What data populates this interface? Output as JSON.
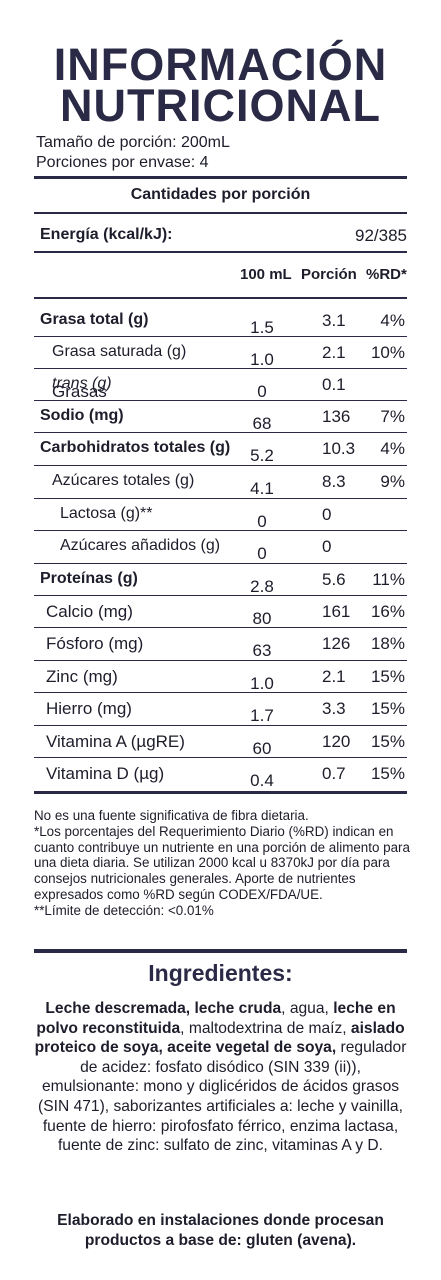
{
  "title": {
    "line1": "INFORMACIÓN",
    "line2": "NUTRICIONAL"
  },
  "serving": {
    "size": "Tamaño de porción: 200mL",
    "per_package": "Porciones por envase: 4"
  },
  "section_header": "Cantidades por porción",
  "energy": {
    "label": "Energía (kcal/kJ):",
    "value": "92/385"
  },
  "columns": {
    "per100": "100 mL",
    "portion": "Porción",
    "rd": "%RD*"
  },
  "rows": [
    {
      "label": "Grasa total (g)",
      "v100": "1.5",
      "portion": "3.1",
      "rd": "4%"
    },
    {
      "label": "Grasa saturada (g)",
      "v100": "1.0",
      "portion": "2.1",
      "rd": "10%"
    },
    {
      "label_pre": "Grasas ",
      "label_italic": "trans (g)",
      "v100": "0",
      "portion": "0.1",
      "rd": ""
    },
    {
      "label": "Sodio (mg)",
      "v100": "68",
      "portion": "136",
      "rd": "7%"
    },
    {
      "label": "Carbohidratos totales (g)",
      "v100": "5.2",
      "portion": "10.3",
      "rd": "4%"
    },
    {
      "label": "Azúcares totales (g)",
      "v100": "4.1",
      "portion": "8.3",
      "rd": "9%"
    },
    {
      "label": "Lactosa (g)**",
      "v100": "0",
      "portion": "0",
      "rd": ""
    },
    {
      "label": "Azúcares añadidos (g)",
      "v100": "0",
      "portion": "0",
      "rd": ""
    },
    {
      "label": "Proteínas (g)",
      "v100": "2.8",
      "portion": "5.6",
      "rd": "11%"
    },
    {
      "label": "Calcio (mg)",
      "v100": "80",
      "portion": "161",
      "rd": "16%"
    },
    {
      "label": "Fósforo (mg)",
      "v100": "63",
      "portion": "126",
      "rd": "18%"
    },
    {
      "label": "Zinc (mg)",
      "v100": "1.0",
      "portion": "2.1",
      "rd": "15%"
    },
    {
      "label": "Hierro (mg)",
      "v100": "1.7",
      "portion": "3.3",
      "rd": "15%"
    },
    {
      "label": "Vitamina A (µgRE)",
      "v100": "60",
      "portion": "120",
      "rd": "15%"
    },
    {
      "label": "Vitamina D (µg)",
      "v100": "0.4",
      "portion": "0.7",
      "rd": "15%"
    }
  ],
  "footnotes": {
    "fiber": "No es una fuente significativa de fibra dietaria.",
    "rd": "*Los porcentajes del Requerimiento Diario (%RD) indican en cuanto contribuye un nutriente en una porción de alimento para una dieta diaria. Se utilizan 2000 kcal u 8370kJ por día para consejos nutricionales generales. Aporte de nutrientes expresados como %RD según CODEX/FDA/UE.",
    "detection": "**Límite de detección: <0.01%"
  },
  "ingredients": {
    "title": "Ingredientes:",
    "b1": "Leche descremada, leche cruda",
    "t1": ", agua, ",
    "b2": "leche en polvo reconstituida",
    "t2": ", maltodextrina de maíz, ",
    "b3": "aislado proteico de soya, aceite vegetal de soya,",
    "t3": " regulador de acidez: fosfato disódico (SIN 339 (ii)), emulsionante: mono y diglicéridos de ácidos grasos (SIN 471), saborizantes artificiales a: leche y vainilla, fuente de hierro: pirofosfato férrico, enzima lactasa, fuente de zinc: sulfato de zinc, vitaminas A y D."
  },
  "allergen_note": "Elaborado en instalaciones donde procesan productos a base de: gluten (avena)."
}
